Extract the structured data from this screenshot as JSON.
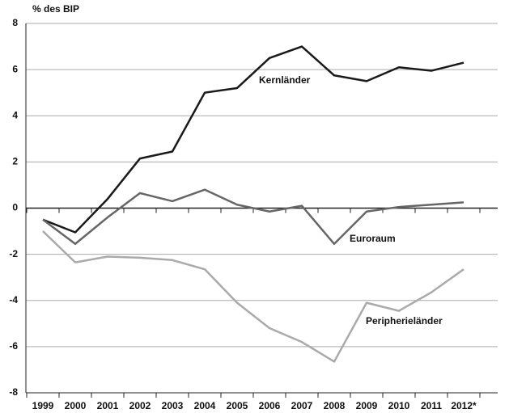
{
  "chart_data": {
    "type": "line",
    "y_label": "% des BIP",
    "categories": [
      "1999",
      "2000",
      "2001",
      "2002",
      "2003",
      "2004",
      "2005",
      "2006",
      "2007",
      "2008",
      "2009",
      "2010",
      "2011",
      "2012*"
    ],
    "series": [
      {
        "name": "Kernländer",
        "color": "#1a1a1a",
        "values": [
          -0.5,
          -1.05,
          0.4,
          2.15,
          2.45,
          5.0,
          5.2,
          6.5,
          7.0,
          5.75,
          5.5,
          6.1,
          5.95,
          6.3
        ]
      },
      {
        "name": "Euroraum",
        "color": "#666666",
        "values": [
          -0.5,
          -1.55,
          -0.4,
          0.65,
          0.3,
          0.8,
          0.15,
          -0.15,
          0.1,
          -1.55,
          -0.15,
          0.05,
          0.15,
          0.25
        ]
      },
      {
        "name": "Peripherieländer",
        "color": "#aaaaaa",
        "values": [
          -1.0,
          -2.35,
          -2.1,
          -2.15,
          -2.25,
          -2.65,
          -4.1,
          -5.2,
          -5.8,
          -6.65,
          -4.1,
          -4.45,
          -3.65,
          -2.65
        ]
      }
    ],
    "ylim": [
      -8,
      8
    ],
    "yticks": [
      -8,
      -6,
      -4,
      -2,
      0,
      2,
      4,
      6,
      8
    ],
    "grid": true
  }
}
